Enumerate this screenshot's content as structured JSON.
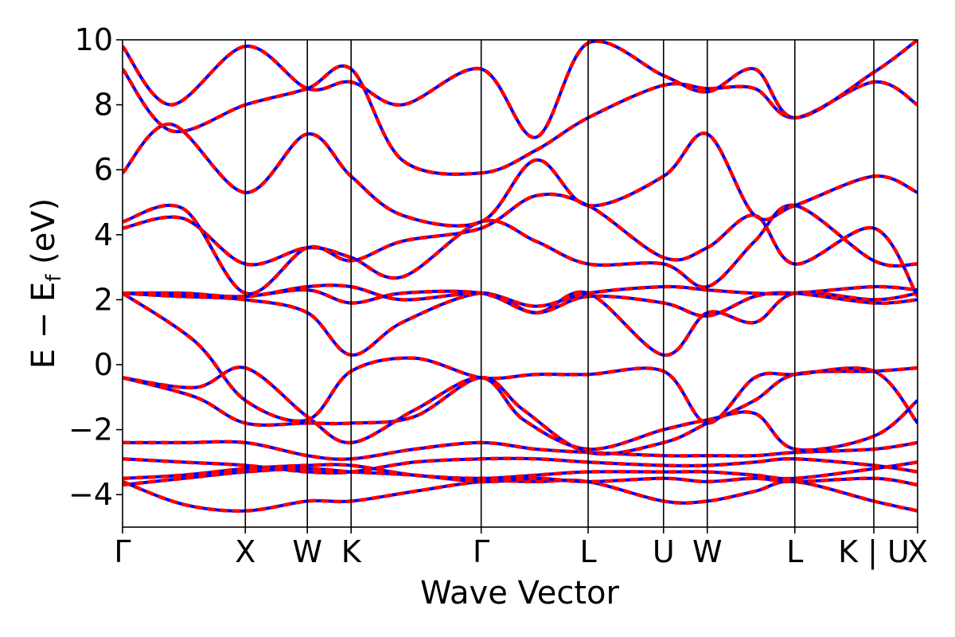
{
  "chart_data": {
    "type": "line",
    "title": "",
    "xlabel": "Wave Vector",
    "ylabel": "E − E_f (eV)",
    "ylabel_parts": {
      "main": "E − E",
      "sub": "f",
      "unit": " (eV)"
    },
    "ylim": [
      -5,
      10
    ],
    "xlim": [
      0,
      6.54
    ],
    "y_ticks": [
      10,
      8,
      6,
      4,
      2,
      0,
      -2,
      -4
    ],
    "y_tick_labels": [
      "10",
      "8",
      "6",
      "4",
      "2",
      "0",
      "−2",
      "−4"
    ],
    "grid": false,
    "legend": "none",
    "colors": {
      "series_a": "#ff0000",
      "series_b": "#0000ff",
      "vlines": "#000000"
    },
    "kpoints": [
      {
        "label": "Γ",
        "x": 0.0
      },
      {
        "label": "X",
        "x": 1.01
      },
      {
        "label": "W",
        "x": 1.52
      },
      {
        "label": "K",
        "x": 1.88
      },
      {
        "label": "Γ",
        "x": 2.95
      },
      {
        "label": "L",
        "x": 3.83
      },
      {
        "label": "U",
        "x": 4.45
      },
      {
        "label": "W",
        "x": 4.81
      },
      {
        "label": "L",
        "x": 5.53
      },
      {
        "label": "K | U",
        "x": 6.18
      },
      {
        "label": "X",
        "x": 6.54
      }
    ],
    "bands": [
      {
        "x": [
          0,
          0.5,
          1.01,
          1.52,
          1.88,
          2.4,
          2.95,
          3.4,
          3.83,
          4.45,
          4.81,
          5.2,
          5.53,
          6.18,
          6.54
        ],
        "y": [
          -3.6,
          -4.3,
          -4.5,
          -4.2,
          -4.2,
          -3.9,
          -3.6,
          -3.6,
          -3.6,
          -4.2,
          -4.2,
          -3.9,
          -3.6,
          -4.2,
          -4.5
        ]
      },
      {
        "x": [
          0,
          0.5,
          1.01,
          1.52,
          1.88,
          2.4,
          2.95,
          3.4,
          3.83,
          4.45,
          4.81,
          5.2,
          5.53,
          6.18,
          6.54
        ],
        "y": [
          -3.5,
          -3.4,
          -3.2,
          -3.1,
          -3.1,
          -3.4,
          -3.5,
          -3.4,
          -3.3,
          -3.3,
          -3.3,
          -3.4,
          -3.5,
          -3.2,
          -3.0
        ]
      },
      {
        "x": [
          0,
          0.5,
          1.01,
          1.52,
          1.88,
          2.4,
          2.95,
          3.4,
          3.83,
          4.45,
          4.81,
          5.2,
          5.53,
          6.18,
          6.54
        ],
        "y": [
          -2.9,
          -3.0,
          -3.1,
          -3.3,
          -3.3,
          -3.0,
          -2.9,
          -2.9,
          -3.0,
          -3.1,
          -3.1,
          -3.0,
          -2.9,
          -3.1,
          -3.3
        ]
      },
      {
        "x": [
          0,
          0.5,
          1.01,
          1.52,
          1.88,
          2.4,
          2.95,
          3.4,
          3.83,
          4.45,
          4.81,
          5.2,
          5.53,
          6.18,
          6.54
        ],
        "y": [
          -2.4,
          -2.4,
          -2.4,
          -2.8,
          -2.9,
          -2.6,
          -2.4,
          -2.6,
          -2.7,
          -2.8,
          -2.8,
          -2.8,
          -2.7,
          -2.6,
          -2.4
        ]
      },
      {
        "x": [
          0,
          0.5,
          1.01,
          1.52,
          1.88,
          2.4,
          2.95,
          3.4,
          3.83,
          4.45,
          4.81,
          5.2,
          5.53,
          6.18,
          6.54
        ],
        "y": [
          -3.7,
          -3.5,
          -3.3,
          -3.2,
          -3.3,
          -3.4,
          -3.6,
          -3.5,
          -3.6,
          -3.5,
          -3.6,
          -3.5,
          -3.6,
          -3.5,
          -3.7
        ]
      },
      {
        "x": [
          0,
          0.6,
          1.01,
          1.52,
          1.88,
          2.4,
          2.95,
          3.3,
          3.83,
          4.45,
          4.81,
          5.2,
          5.53,
          6.18,
          6.54
        ],
        "y": [
          -0.4,
          -1.0,
          -1.8,
          -1.8,
          -1.8,
          -1.6,
          -0.4,
          -1.4,
          -2.7,
          -2.4,
          -1.8,
          -1.1,
          -0.3,
          -0.2,
          -0.1
        ]
      },
      {
        "x": [
          0,
          0.6,
          1.01,
          1.52,
          1.88,
          2.4,
          2.95,
          3.3,
          3.83,
          4.45,
          4.81,
          5.2,
          5.53,
          6.18,
          6.54
        ],
        "y": [
          -0.4,
          -0.7,
          -0.1,
          -1.6,
          -2.4,
          -1.4,
          -0.4,
          -1.7,
          -2.6,
          -2.0,
          -1.7,
          -1.5,
          -2.6,
          -2.2,
          -1.1
        ]
      },
      {
        "x": [
          0,
          0.6,
          1.01,
          1.52,
          1.88,
          2.4,
          2.95,
          3.4,
          3.83,
          4.45,
          4.81,
          5.2,
          5.53,
          6.18,
          6.54
        ],
        "y": [
          2.2,
          0.7,
          -1.1,
          -1.7,
          -0.2,
          0.2,
          -0.4,
          -0.3,
          -0.3,
          -0.2,
          -1.8,
          -0.4,
          -0.3,
          -0.2,
          -1.8
        ]
      },
      {
        "x": [
          0,
          0.5,
          1.01,
          1.52,
          1.88,
          2.3,
          2.95,
          3.4,
          3.83,
          4.45,
          4.81,
          5.2,
          5.53,
          6.18,
          6.54
        ],
        "y": [
          2.2,
          2.1,
          2.0,
          1.6,
          0.3,
          1.3,
          2.2,
          1.6,
          2.2,
          0.3,
          1.6,
          1.3,
          2.2,
          2.0,
          2.2
        ]
      },
      {
        "x": [
          0,
          0.5,
          1.01,
          1.52,
          1.88,
          2.3,
          2.95,
          3.4,
          3.83,
          4.45,
          4.81,
          5.2,
          5.53,
          6.18,
          6.54
        ],
        "y": [
          2.2,
          2.1,
          2.1,
          2.3,
          1.9,
          2.2,
          2.2,
          1.6,
          2.1,
          1.9,
          1.5,
          2.1,
          2.2,
          1.9,
          2.0
        ]
      },
      {
        "x": [
          0,
          0.5,
          1.01,
          1.52,
          1.88,
          2.3,
          2.95,
          3.4,
          3.83,
          4.45,
          4.81,
          5.2,
          5.53,
          6.18,
          6.54
        ],
        "y": [
          2.2,
          2.2,
          2.1,
          2.4,
          2.4,
          2.0,
          2.2,
          1.8,
          2.2,
          2.4,
          2.3,
          2.2,
          2.2,
          2.4,
          2.3
        ]
      },
      {
        "x": [
          0,
          0.5,
          1.01,
          1.52,
          1.88,
          2.3,
          2.95,
          3.4,
          3.83,
          4.45,
          4.81,
          5.2,
          5.53,
          6.18,
          6.54
        ],
        "y": [
          4.2,
          4.5,
          3.1,
          3.6,
          3.3,
          2.7,
          4.4,
          3.8,
          3.1,
          3.1,
          2.4,
          3.8,
          4.9,
          3.2,
          3.1
        ]
      },
      {
        "x": [
          0,
          0.5,
          1.01,
          1.52,
          1.88,
          2.3,
          2.95,
          3.4,
          3.83,
          4.45,
          4.81,
          5.2,
          5.53,
          6.18,
          6.54
        ],
        "y": [
          4.4,
          4.8,
          2.2,
          3.6,
          3.2,
          3.8,
          4.2,
          5.2,
          4.9,
          3.3,
          3.6,
          4.6,
          3.1,
          4.2,
          2.1
        ]
      },
      {
        "x": [
          0,
          0.4,
          1.01,
          1.52,
          1.88,
          2.3,
          2.95,
          3.4,
          3.83,
          4.45,
          4.81,
          5.2,
          5.53,
          6.18,
          6.54
        ],
        "y": [
          5.9,
          7.4,
          5.3,
          7.1,
          5.8,
          4.6,
          4.4,
          6.3,
          4.9,
          5.8,
          7.1,
          4.6,
          4.9,
          5.8,
          5.3
        ]
      },
      {
        "x": [
          0,
          0.4,
          1.01,
          1.52,
          1.88,
          2.3,
          2.95,
          3.4,
          3.83,
          4.45,
          4.81,
          5.2,
          5.53,
          6.18,
          6.54
        ],
        "y": [
          9.1,
          7.2,
          8.0,
          8.5,
          9.1,
          6.3,
          5.9,
          6.6,
          7.6,
          8.6,
          8.5,
          8.5,
          7.6,
          8.7,
          8.0
        ]
      },
      {
        "x": [
          0,
          0.4,
          1.01,
          1.52,
          1.88,
          2.3,
          2.95,
          3.4,
          3.83,
          4.45,
          4.81,
          5.2,
          5.53,
          6.18,
          6.54
        ],
        "y": [
          9.8,
          8.0,
          9.8,
          8.5,
          8.7,
          8.0,
          9.1,
          7.0,
          9.9,
          8.9,
          8.4,
          9.1,
          7.6,
          9.0,
          10.0
        ]
      }
    ]
  }
}
